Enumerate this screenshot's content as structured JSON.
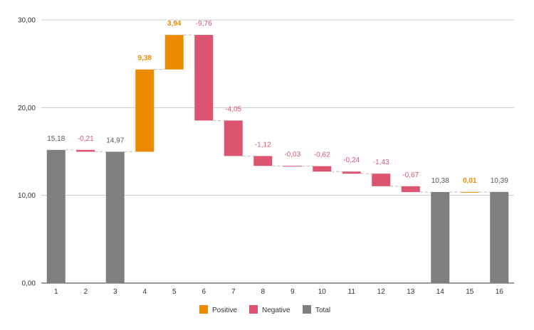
{
  "chart_data": {
    "type": "waterfall",
    "title": "",
    "xlabel": "",
    "ylabel": "",
    "ylim": [
      0,
      30
    ],
    "yticks": [
      0,
      10,
      20,
      30
    ],
    "ytick_labels": [
      "0,00",
      "10,00",
      "20,00",
      "30,00"
    ],
    "grid": true,
    "legend_position": "bottom",
    "categories": [
      "1",
      "2",
      "3",
      "4",
      "5",
      "6",
      "7",
      "8",
      "9",
      "10",
      "11",
      "12",
      "13",
      "14",
      "15",
      "16"
    ],
    "bars": [
      {
        "kind": "total",
        "value": 15.18,
        "label": "15,18"
      },
      {
        "kind": "negative",
        "value": -0.21,
        "label": "-0,21"
      },
      {
        "kind": "total",
        "value": 14.97,
        "label": "14,97"
      },
      {
        "kind": "positive",
        "value": 9.38,
        "label": "9,38"
      },
      {
        "kind": "positive",
        "value": 3.94,
        "label": "3,94"
      },
      {
        "kind": "negative",
        "value": -9.76,
        "label": "-9,76"
      },
      {
        "kind": "negative",
        "value": -4.05,
        "label": "-4,05"
      },
      {
        "kind": "negative",
        "value": -1.12,
        "label": "-1,12"
      },
      {
        "kind": "negative",
        "value": -0.03,
        "label": "-0,03"
      },
      {
        "kind": "negative",
        "value": -0.62,
        "label": "-0,62"
      },
      {
        "kind": "negative",
        "value": -0.24,
        "label": "-0,24"
      },
      {
        "kind": "negative",
        "value": -1.43,
        "label": "-1,43"
      },
      {
        "kind": "negative",
        "value": -0.67,
        "label": "-0,67"
      },
      {
        "kind": "total",
        "value": 10.38,
        "label": "10,38"
      },
      {
        "kind": "positive",
        "value": 0.01,
        "label": "0,01"
      },
      {
        "kind": "total",
        "value": 10.39,
        "label": "10,39"
      }
    ],
    "legend": [
      {
        "kind": "positive",
        "label": "Positive"
      },
      {
        "kind": "negative",
        "label": "Negative"
      },
      {
        "kind": "total",
        "label": "Total"
      }
    ],
    "colors": {
      "positive": "#ed8b00",
      "negative": "#dd5470",
      "total": "#7f7f7f",
      "grid": "#cccccc",
      "connector": "#bbbbbb"
    }
  }
}
